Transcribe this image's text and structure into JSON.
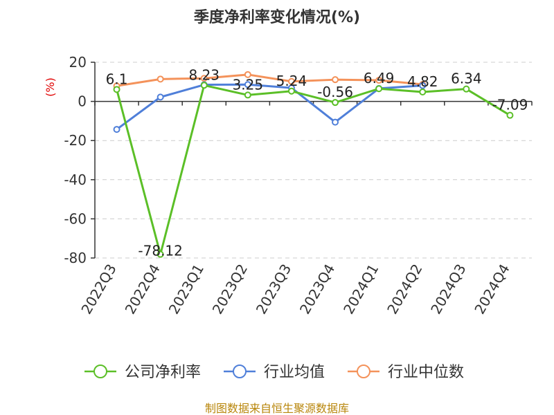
{
  "chart_data": {
    "type": "line",
    "title": "季度净利率变化情况(%)",
    "ylabel": "(%)",
    "xlabel": "",
    "ylim": [
      -80,
      20
    ],
    "yticks": [
      20,
      0,
      -20,
      -40,
      -60,
      -80
    ],
    "grid": true,
    "legend_position": "bottom",
    "categories": [
      "2022Q3",
      "2022Q4",
      "2023Q1",
      "2023Q2",
      "2023Q3",
      "2023Q4",
      "2024Q1",
      "2024Q2",
      "2024Q3",
      "2024Q4"
    ],
    "series": [
      {
        "name": "公司净利率",
        "color": "#5bbf27",
        "values": [
          6.1,
          -78.12,
          8.23,
          3.25,
          5.24,
          -0.56,
          6.49,
          4.82,
          6.34,
          -7.09
        ],
        "labels": [
          "6.1",
          "-78.12",
          "8.23",
          "3.25",
          "5.24",
          "-0.56",
          "6.49",
          "4.82",
          "6.34",
          "-7.09"
        ]
      },
      {
        "name": "行业均值",
        "color": "#4f7fd9",
        "values": [
          -14.3,
          2.2,
          8.5,
          8.6,
          6.9,
          -10.6,
          6.6,
          8.1,
          null,
          null
        ]
      },
      {
        "name": "行业中位数",
        "color": "#f4925a",
        "values": [
          7.9,
          11.4,
          11.8,
          13.7,
          10.2,
          11.1,
          10.8,
          8.7,
          null,
          null
        ]
      }
    ]
  },
  "footer": {
    "source": "制图数据来自恒生聚源数据库"
  }
}
